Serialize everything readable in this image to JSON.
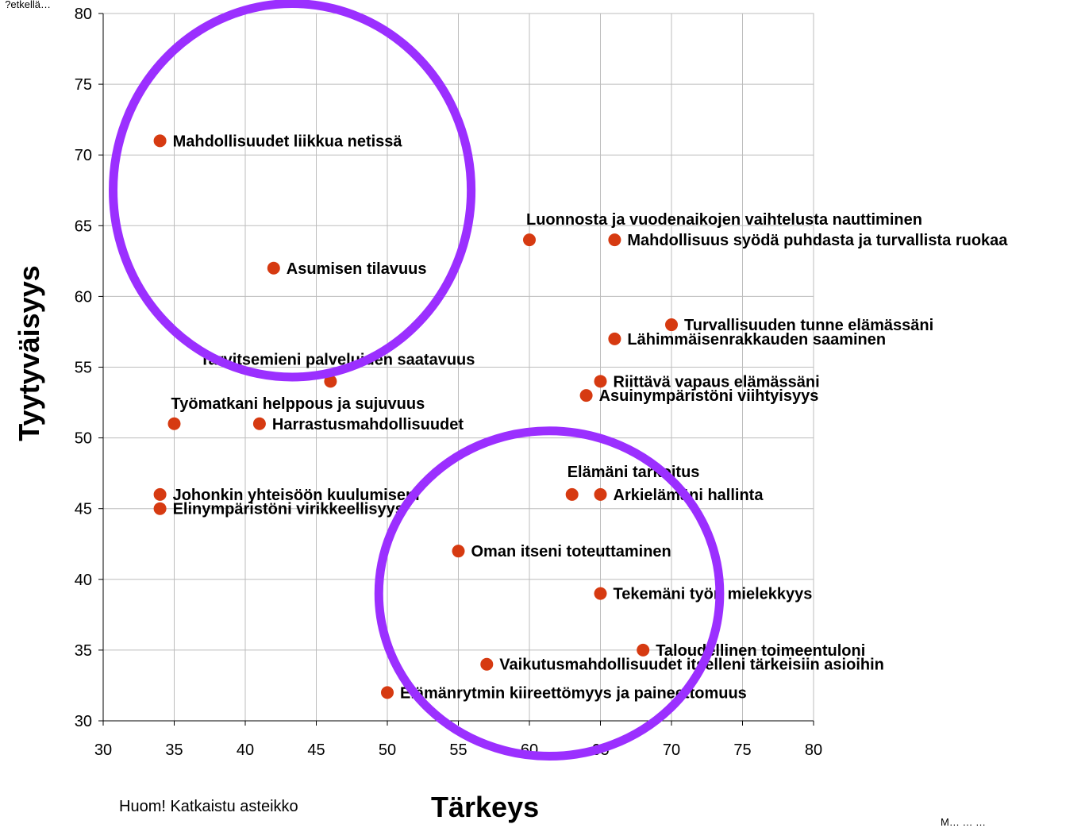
{
  "corner_text": "…etkellä?",
  "note": "Huom! Katkaistu asteikko",
  "footer_text": "M… … …",
  "chart_data": {
    "type": "scatter",
    "xlabel": "Tärkeys",
    "ylabel": "Tyytyväisyys",
    "xlim": [
      30,
      80
    ],
    "ylim": [
      30,
      80
    ],
    "x_ticks": [
      30,
      35,
      40,
      45,
      50,
      55,
      60,
      65,
      70,
      75,
      80
    ],
    "y_ticks": [
      30,
      35,
      40,
      45,
      50,
      55,
      60,
      65,
      70,
      75,
      80
    ],
    "grid": true,
    "point_color": "#d63a11",
    "highlight_color": "#9b2fff",
    "points": [
      {
        "x": 34,
        "y": 71,
        "label": "Mahdollisuudet liikkua netissä",
        "label_pos": "right"
      },
      {
        "x": 42,
        "y": 62,
        "label": "Asumisen tilavuus",
        "label_pos": "right"
      },
      {
        "x": 60,
        "y": 64,
        "label": "Luonnosta ja vuodenaikojen vaihtelusta nauttiminen",
        "label_pos": "above-right"
      },
      {
        "x": 66,
        "y": 64,
        "label": "Mahdollisuus syödä puhdasta ja turvallista ruokaa",
        "label_pos": "right"
      },
      {
        "x": 70,
        "y": 58,
        "label": "Turvallisuuden tunne elämässäni",
        "label_pos": "right"
      },
      {
        "x": 66,
        "y": 57,
        "label": "Lähimmäisenrakkauden saaminen",
        "label_pos": "right"
      },
      {
        "x": 46,
        "y": 54,
        "label": "Tarvitsemieni palveluiden saatavuus",
        "label_pos": "above-left"
      },
      {
        "x": 65,
        "y": 54,
        "label": "Riittävä vapaus elämässäni",
        "label_pos": "right"
      },
      {
        "x": 64,
        "y": 53,
        "label": "Asuinympäristöni viihtyisyys",
        "label_pos": "right"
      },
      {
        "x": 35,
        "y": 51,
        "label": "Työmatkani helppous ja sujuvuus",
        "label_pos": "above-right"
      },
      {
        "x": 41,
        "y": 51,
        "label": "Harrastusmahdollisuudet",
        "label_pos": "right"
      },
      {
        "x": 63,
        "y": 46,
        "label": "Elämäni tarkoitus",
        "label_pos": "above"
      },
      {
        "x": 65,
        "y": 46,
        "label": "Arkielämäni hallinta",
        "label_pos": "right"
      },
      {
        "x": 34,
        "y": 46,
        "label": "Johonkin yhteisöön kuulumiseni",
        "label_pos": "right"
      },
      {
        "x": 34,
        "y": 45,
        "label": "Elinympäristöni virikkeellisyys",
        "label_pos": "right"
      },
      {
        "x": 55,
        "y": 42,
        "label": "Oman itseni toteuttaminen",
        "label_pos": "right"
      },
      {
        "x": 65,
        "y": 39,
        "label": "Tekemäni työn mielekkyys",
        "label_pos": "right"
      },
      {
        "x": 68,
        "y": 35,
        "label": "Taloudellinen toimeentuloni",
        "label_pos": "right"
      },
      {
        "x": 57,
        "y": 34,
        "label": "Vaikutusmahdollisuudet itselleni tärkeisiin asioihin",
        "label_pos": "right"
      },
      {
        "x": 50,
        "y": 32,
        "label": "Elämänrytmin kiireettömyys ja paineettomuus",
        "label_pos": "right"
      }
    ],
    "highlight_ellipses": [
      {
        "cx": 43.3,
        "cy": 67.5,
        "rx": 12.6,
        "ry": 13.2
      },
      {
        "cx": 61.4,
        "cy": 39.0,
        "rx": 12.0,
        "ry": 11.5
      }
    ]
  }
}
